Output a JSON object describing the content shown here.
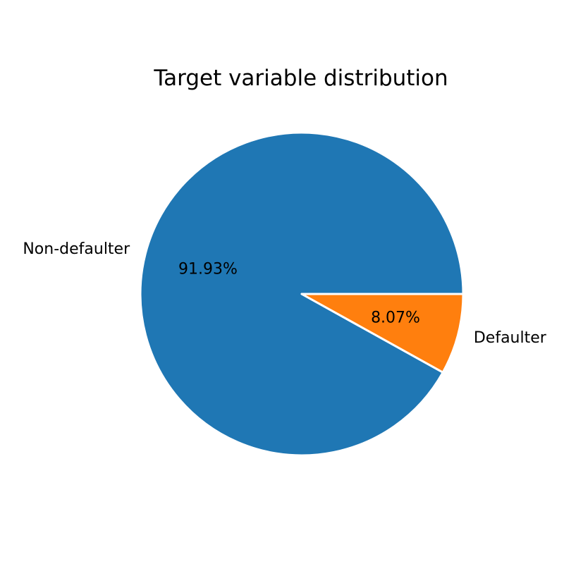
{
  "chart_data": {
    "type": "pie",
    "title": "Target variable distribution",
    "categories": [
      "Non-defaulter",
      "Defaulter"
    ],
    "values": [
      91.93,
      8.07
    ],
    "percent_labels": [
      "91.93%",
      "8.07%"
    ],
    "colors": [
      "#1f77b4",
      "#ff7f0e"
    ],
    "edge_color": "#ffffff",
    "start_angle_deg": 0,
    "direction": "counterclockwise"
  }
}
